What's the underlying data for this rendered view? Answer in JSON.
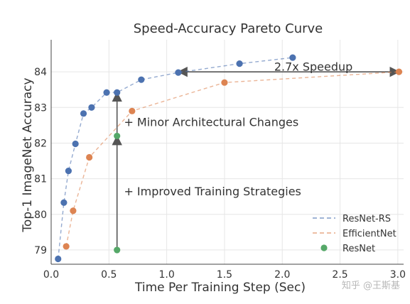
{
  "chart_data": {
    "type": "scatter",
    "title": "Speed-Accuracy Pareto Curve",
    "xlabel": "Time Per Training Step (Sec)",
    "ylabel": "Top-1 ImageNet Accuracy",
    "xlim": [
      0.0,
      3.05
    ],
    "ylim": [
      78.6,
      84.9
    ],
    "xticks": [
      "0.0",
      "0.5",
      "1.0",
      "1.5",
      "2.0",
      "2.5",
      "3.0"
    ],
    "yticks": [
      "79",
      "80",
      "81",
      "82",
      "83",
      "84"
    ],
    "grid": true,
    "legend_position": "bottom-right",
    "series": [
      {
        "name": "ResNet-RS",
        "color": "#4c72b0",
        "style": "dashed-line-with-markers",
        "x": [
          0.06,
          0.11,
          0.15,
          0.21,
          0.28,
          0.35,
          0.48,
          0.57,
          0.78,
          1.1,
          1.63,
          2.09
        ],
        "y": [
          78.75,
          80.33,
          81.22,
          81.98,
          82.83,
          83.0,
          83.42,
          83.42,
          83.78,
          83.98,
          84.23,
          84.4
        ]
      },
      {
        "name": "EfficientNet",
        "color": "#dd8452",
        "style": "dashed-line-with-markers",
        "x": [
          0.13,
          0.19,
          0.33,
          0.7,
          1.5,
          3.01
        ],
        "y": [
          79.1,
          80.1,
          81.6,
          82.9,
          83.7,
          84.0
        ]
      },
      {
        "name": "ResNet",
        "color": "#55a868",
        "style": "markers",
        "x": [
          0.57,
          0.57
        ],
        "y": [
          79.0,
          82.2
        ]
      }
    ],
    "annotations": [
      {
        "text": "2.7x Speedup",
        "x": 1.93,
        "y": 84.15,
        "arrow_from": [
          3.01,
          84.0
        ],
        "arrow_to": [
          1.1,
          84.0
        ],
        "arrowheads": "both"
      },
      {
        "text": "+ Minor Architectural Changes",
        "x": 0.63,
        "y": 82.6,
        "arrow_from": [
          0.57,
          82.2
        ],
        "arrow_to": [
          0.57,
          83.42
        ]
      },
      {
        "text": "+ Improved Training Strategies",
        "x": 0.63,
        "y": 80.65,
        "arrow_from": [
          0.57,
          79.0
        ],
        "arrow_to": [
          0.57,
          82.2
        ]
      }
    ]
  },
  "watermark": "知乎 @王斯基"
}
